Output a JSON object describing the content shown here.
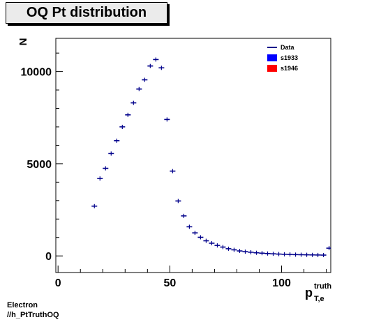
{
  "chart_data": {
    "type": "scatter",
    "title": "OQ Pt distribution",
    "ylabel": "N",
    "xlabel_main": "p",
    "xlabel_sup": "truth",
    "xlabel_sub": "T,e",
    "xlim": [
      -1,
      122
    ],
    "ylim": [
      -900,
      11800
    ],
    "xticks": [
      0,
      50,
      100
    ],
    "yticks": [
      0,
      5000,
      10000
    ],
    "xtick_labels": [
      "0",
      "50",
      "100"
    ],
    "ytick_labels": [
      "0",
      "5000",
      "10000"
    ],
    "legend": {
      "placement": "top-right",
      "entries": [
        {
          "label": "Data",
          "style": "line",
          "color": "#00008b"
        },
        {
          "label": "s1933",
          "style": "box",
          "color": "#0000ff"
        },
        {
          "label": "s1946",
          "style": "box",
          "color": "#ff0000"
        }
      ]
    },
    "series": [
      {
        "name": "Data",
        "color": "#00008b",
        "bin_width": 2.5,
        "x": [
          16.25,
          18.75,
          21.25,
          23.75,
          26.25,
          28.75,
          31.25,
          33.75,
          36.25,
          38.75,
          41.25,
          43.75,
          46.25,
          48.75,
          51.25,
          53.75,
          56.25,
          58.75,
          61.25,
          63.75,
          66.25,
          68.75,
          71.25,
          73.75,
          76.25,
          78.75,
          81.25,
          83.75,
          86.25,
          88.75,
          91.25,
          93.75,
          96.25,
          98.75,
          101.25,
          103.75,
          106.25,
          108.75,
          111.25,
          113.75,
          116.25,
          118.75,
          121.25
        ],
        "y": [
          2700,
          4200,
          4750,
          5550,
          6250,
          7000,
          7650,
          8300,
          9050,
          9550,
          10300,
          10650,
          10200,
          7400,
          4600,
          2980,
          2170,
          1580,
          1250,
          1010,
          820,
          690,
          570,
          480,
          390,
          330,
          270,
          230,
          200,
          170,
          150,
          130,
          115,
          100,
          90,
          80,
          70,
          65,
          60,
          55,
          50,
          45,
          420
        ]
      }
    ]
  },
  "footer": {
    "line1": "Electron",
    "line2": "//h_PtTruthOQ"
  }
}
